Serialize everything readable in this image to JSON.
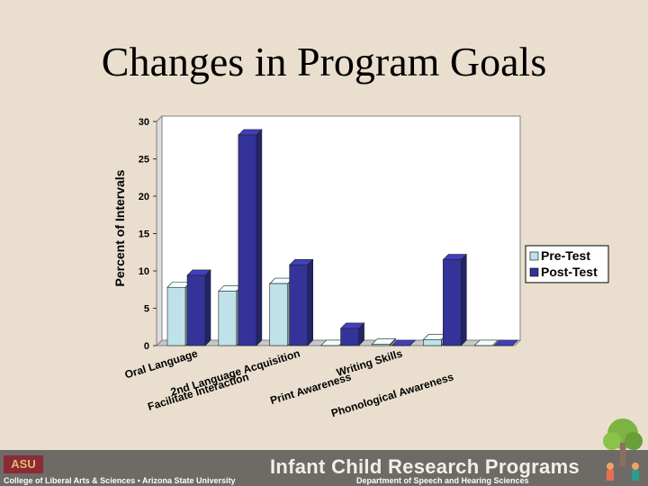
{
  "slide": {
    "title": "Changes in Program Goals"
  },
  "footer": {
    "logo_text": "ASU",
    "college": "College of Liberal Arts & Sciences • Arizona State University",
    "program": "Infant Child Research Programs",
    "department": "Department of Speech and Hearing Sciences"
  },
  "colors": {
    "pre": "#bfe2ea",
    "post": "#333399",
    "background": "#eadfce"
  },
  "chart_data": {
    "type": "bar",
    "ylabel": "Percent of Intervals",
    "xlabel": "",
    "ylim": [
      0,
      30
    ],
    "yticks": [
      0,
      5,
      10,
      15,
      20,
      25,
      30
    ],
    "categories": [
      "Oral Language",
      "Facilitate Interaction",
      "2nd Language Acquisition",
      "Print Awareness",
      "Writing Skills",
      "Phonological Awareness",
      ""
    ],
    "series": [
      {
        "name": "Pre-Test",
        "values": [
          7.8,
          7.3,
          8.3,
          0,
          0.2,
          0.8,
          0
        ]
      },
      {
        "name": "Post-Test",
        "values": [
          9.4,
          28.2,
          10.8,
          2.3,
          0,
          11.5,
          0
        ]
      }
    ],
    "legend": "right",
    "grid": false
  }
}
